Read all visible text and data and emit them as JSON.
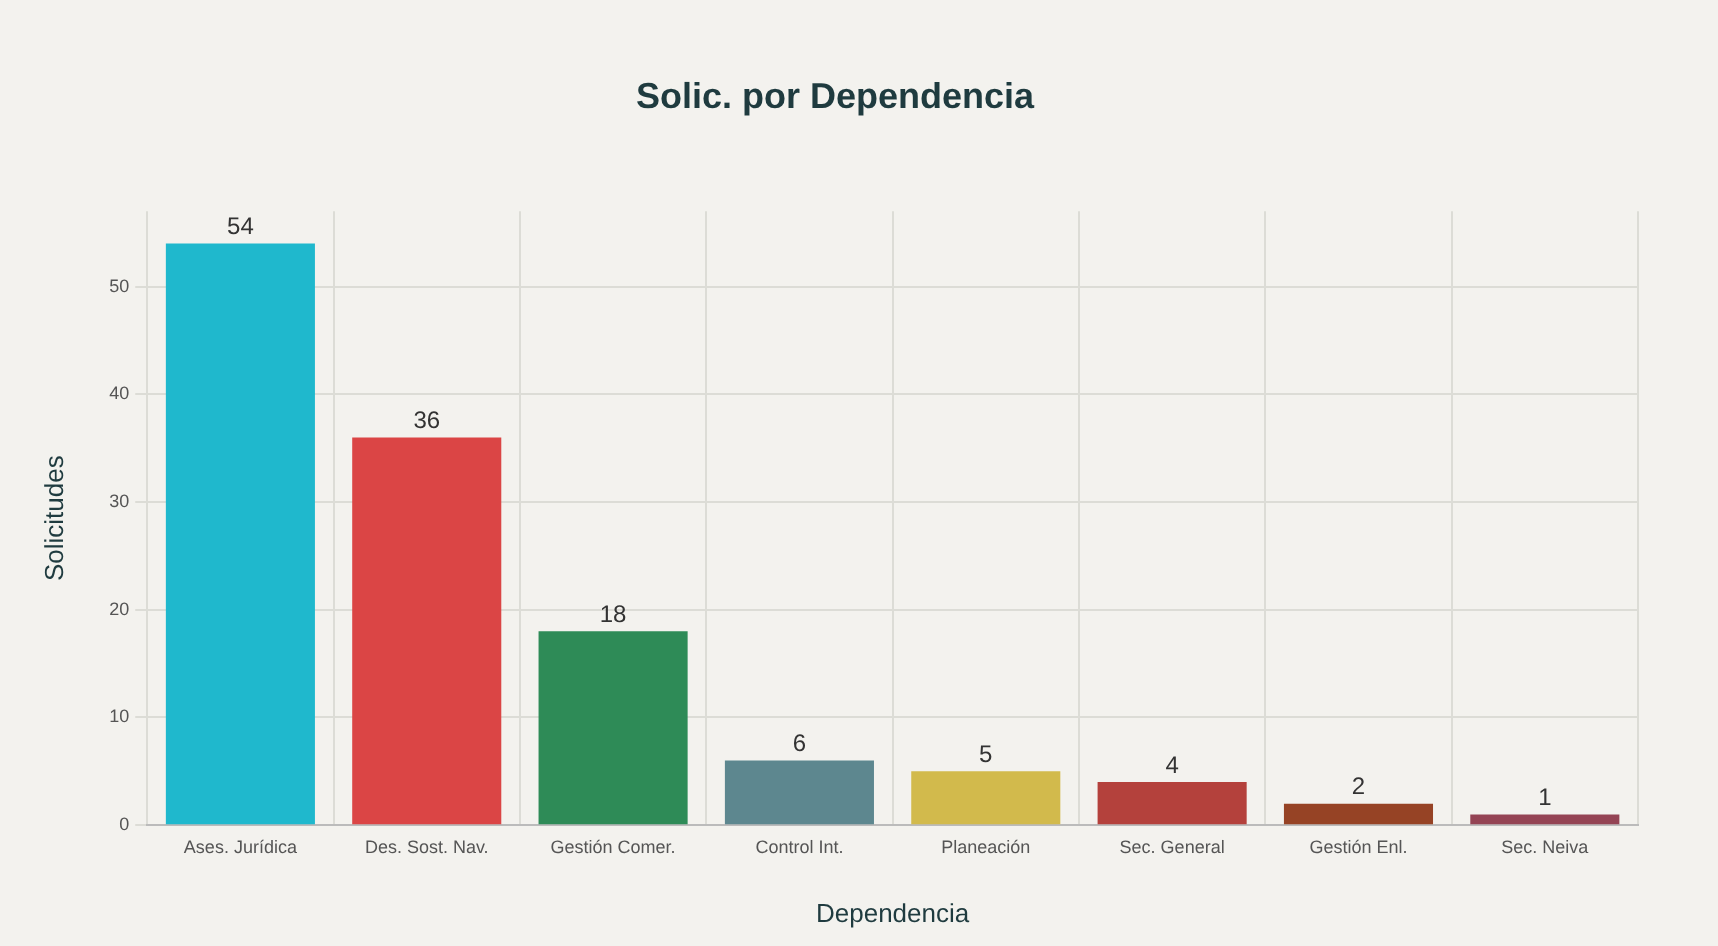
{
  "chart_data": {
    "type": "bar",
    "title": "Solic. por Dependencia",
    "xlabel": "Dependencia",
    "ylabel": "Solicitudes",
    "categories": [
      "Ases. Jurídica",
      "Des. Sost. Nav.",
      "Gestión Comer.",
      "Control Int.",
      "Planeación",
      "Sec. General",
      "Gestión Enl.",
      "Sec. Neiva"
    ],
    "values": [
      54,
      36,
      18,
      6,
      5,
      4,
      2,
      1
    ],
    "colors": [
      "#1fb8cd",
      "#db4545",
      "#2e8b57",
      "#5d878f",
      "#d2ba4c",
      "#b4413c",
      "#964325",
      "#944454"
    ],
    "ylim": [
      0,
      57
    ],
    "yticks": [
      0,
      10,
      20,
      30,
      40,
      50
    ],
    "grid": true,
    "data_labels": true
  }
}
